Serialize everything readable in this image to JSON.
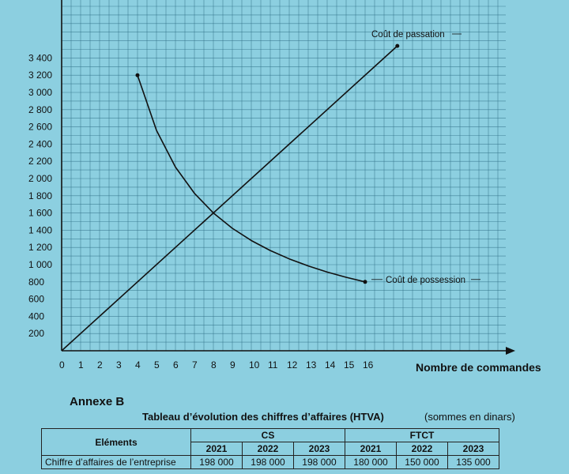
{
  "chart_data": {
    "type": "line",
    "xlabel": "Nombre de commandes",
    "ylabel": "",
    "x_ticks": [
      0,
      1,
      2,
      3,
      4,
      5,
      6,
      7,
      8,
      9,
      10,
      11,
      12,
      13,
      14,
      15,
      16
    ],
    "y_ticks": [
      200,
      400,
      600,
      800,
      1000,
      1200,
      1400,
      1600,
      1800,
      2000,
      2200,
      2400,
      2600,
      2800,
      3000,
      3200,
      3400
    ],
    "y_tick_labels": [
      "200",
      "400",
      "600",
      "800",
      "1 000",
      "1 200",
      "1 400",
      "1 600",
      "1 800",
      "2 000",
      "2 200",
      "2 400",
      "2 600",
      "2 800",
      "3 000",
      "3 200",
      "3 400"
    ],
    "xlim": [
      0,
      16
    ],
    "ylim": [
      0,
      3400
    ],
    "grid": true,
    "series": [
      {
        "name": "Coût de passation",
        "x": [
          0,
          17.7
        ],
        "y": [
          0,
          3540
        ]
      },
      {
        "name": "Coût de possession",
        "x": [
          4,
          5,
          6,
          7,
          8,
          9,
          10,
          11,
          12,
          13,
          14,
          15,
          16
        ],
        "y": [
          3200,
          2560,
          2133,
          1829,
          1600,
          1422,
          1280,
          1164,
          1067,
          985,
          914,
          853,
          800
        ]
      }
    ]
  },
  "annex": {
    "title": "Annexe B",
    "caption": "Tableau d’évolution des chiffres d’affaires (HTVA)",
    "unit": "(sommes en dinars)",
    "table": {
      "col_elements": "Eléments",
      "groups": [
        "CS",
        "FTCT"
      ],
      "years": [
        "2021",
        "2022",
        "2023",
        "2021",
        "2022",
        "2023"
      ],
      "row_label": "Chiffre d’affaires de l’entreprise",
      "row_values": [
        "198 000",
        "198 000",
        "198 000",
        "180 000",
        "150 000",
        "135 000"
      ]
    }
  }
}
